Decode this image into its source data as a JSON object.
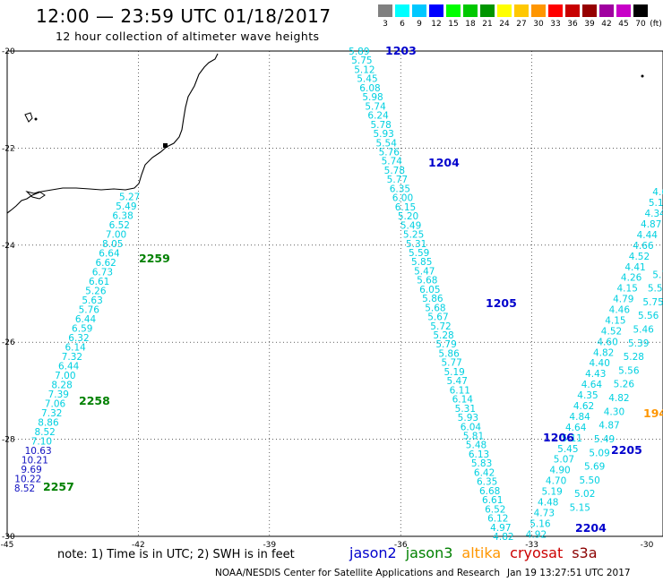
{
  "title": "12:00 — 23:59 UTC 01/18/2017",
  "subtitle": "12 hour collection of altimeter wave heights",
  "color_legend": {
    "unit": "(ft)",
    "bins": [
      {
        "label": "3",
        "color": "#808080"
      },
      {
        "label": "6",
        "color": "#00ffff"
      },
      {
        "label": "9",
        "color": "#00c8ff"
      },
      {
        "label": "12",
        "color": "#0000ff"
      },
      {
        "label": "15",
        "color": "#00ff00"
      },
      {
        "label": "18",
        "color": "#00c800"
      },
      {
        "label": "21",
        "color": "#009600"
      },
      {
        "label": "24",
        "color": "#ffff00"
      },
      {
        "label": "27",
        "color": "#ffc800"
      },
      {
        "label": "30",
        "color": "#ff9600"
      },
      {
        "label": "33",
        "color": "#ff0000"
      },
      {
        "label": "36",
        "color": "#c80000"
      },
      {
        "label": "39",
        "color": "#960000"
      },
      {
        "label": "42",
        "color": "#a000a0"
      },
      {
        "label": "45",
        "color": "#c800c8"
      },
      {
        "label": "70",
        "color": "#000000"
      }
    ]
  },
  "axes": {
    "lon_labels": [
      "-45",
      "-42",
      "-39",
      "-36",
      "-33",
      "-30"
    ],
    "lat_labels": [
      "-20",
      "-22",
      "-24",
      "-26",
      "-28",
      "-30"
    ],
    "lon_range": [
      -45,
      -30
    ],
    "lat_range": [
      -20,
      -30
    ]
  },
  "tracks": [
    {
      "id": "track-1203",
      "color": "#00d0e0",
      "start": [
        -36.95,
        -20.0
      ],
      "end": [
        -33.65,
        -30.0
      ],
      "values": [
        "5.89",
        "5.75",
        "5.12",
        "5.45",
        "6.08",
        "5.98",
        "5.74",
        "6.24",
        "5.78",
        "5.93",
        "5.54",
        "5.76",
        "5.74",
        "5.78",
        "5.77",
        "6.35",
        "6.00",
        "6.15",
        "5.20",
        "5.49",
        "5.25",
        "5.31",
        "5.59",
        "5.85",
        "5.47",
        "5.68",
        "6.05",
        "5.86",
        "5.68",
        "5.67",
        "5.72",
        "5.28",
        "5.79",
        "5.86",
        "5.77",
        "5.19",
        "5.47",
        "6.11",
        "6.14",
        "5.31",
        "5.93",
        "6.04",
        "5.81",
        "5.48",
        "6.13",
        "5.83",
        "6.42",
        "6.35",
        "6.68",
        "6.61",
        "6.52",
        "6.12",
        "4.97",
        "4.82"
      ]
    },
    {
      "id": "track-right-1",
      "color": "#00d0e0",
      "start": [
        -32.9,
        -29.95
      ],
      "end": [
        -30.0,
        -22.9
      ],
      "values": [
        "4.92",
        "5.16",
        "4.73",
        "4.48",
        "5.19",
        "4.70",
        "4.90",
        "5.07",
        "5.45",
        "5.11",
        "4.64",
        "4.84",
        "4.62",
        "4.35",
        "4.64",
        "4.43",
        "4.40",
        "4.82",
        "4.60",
        "4.52",
        "4.15",
        "4.46",
        "4.79",
        "4.15",
        "4.26",
        "4.41",
        "4.52",
        "4.66",
        "4.44",
        "4.87",
        "4.34",
        "5.19",
        "4.61"
      ]
    },
    {
      "id": "track-right-2",
      "color": "#00d0e0",
      "start": [
        -31.9,
        -29.4
      ],
      "end": [
        -30.0,
        -24.6
      ],
      "values": [
        "5.15",
        "5.02",
        "5.50",
        "5.69",
        "5.09",
        "5.49",
        "4.87",
        "4.30",
        "4.82",
        "5.26",
        "5.56",
        "5.28",
        "5.39",
        "5.46",
        "5.56",
        "5.75",
        "5.50",
        "5.71"
      ]
    },
    {
      "id": "track-2257",
      "color": "#00d0e0",
      "start": [
        -42.2,
        -23.0
      ],
      "end": [
        -44.6,
        -29.0
      ],
      "values": [
        "5.27",
        "5.49",
        "6.38",
        "6.52",
        "7.00",
        "8.05",
        "6.64",
        "6.62",
        "6.73",
        "6.61",
        "5.26",
        "5.63",
        "5.76",
        "6.44",
        "6.59",
        "6.32",
        "6.14",
        "7.32",
        "6.44",
        "7.00",
        "8.28",
        "7.39",
        "7.06",
        "7.32",
        "8.86",
        "8.52",
        "7.10",
        "10.63",
        "10.21",
        "9.69",
        "10.22",
        "8.52"
      ],
      "blue_values": [
        "10.63",
        "10.21",
        "9.69",
        "10.22",
        "8.52"
      ]
    }
  ],
  "pass_labels": [
    {
      "text": "1203",
      "color": "#0000cc"
    },
    {
      "text": "1204",
      "color": "#0000cc"
    },
    {
      "text": "1205",
      "color": "#0000cc"
    },
    {
      "text": "1206",
      "color": "#0000cc"
    },
    {
      "text": "2204",
      "color": "#0000cc"
    },
    {
      "text": "2205",
      "color": "#0000cc"
    },
    {
      "text": "2259",
      "color": "#008000"
    },
    {
      "text": "2258",
      "color": "#008000"
    },
    {
      "text": "2257",
      "color": "#008000"
    },
    {
      "text": "194",
      "color": "#ff9600"
    }
  ],
  "note": "note: 1) Time is in UTC; 2) SWH is in feet",
  "satellites": [
    {
      "name": "jason2",
      "color": "#0000cc"
    },
    {
      "name": "jason3",
      "color": "#008000"
    },
    {
      "name": "altika",
      "color": "#ff9600"
    },
    {
      "name": "cryosat",
      "color": "#cc0000"
    },
    {
      "name": "s3a",
      "color": "#8b0000"
    }
  ],
  "credit": "NOAA/NESDIS Center for Satellite Applications and Research",
  "timestamp": "Jan 19 13:27:51 UTC 2017"
}
